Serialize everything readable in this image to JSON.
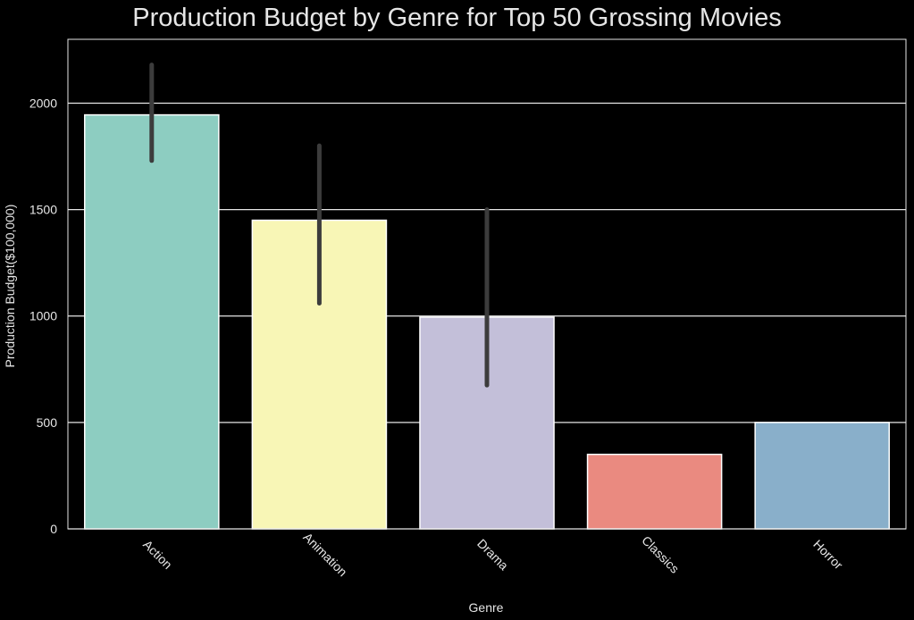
{
  "chart_data": {
    "type": "bar",
    "title": "Production Budget by Genre for Top 50 Grossing Movies",
    "xlabel": "Genre",
    "ylabel": "Production Budget($100,000)",
    "categories": [
      "Action",
      "Animation",
      "Drama",
      "Classics",
      "Horror"
    ],
    "values": [
      1945,
      1450,
      995,
      350,
      500
    ],
    "error_bars": [
      {
        "low": 1730,
        "high": 2180
      },
      {
        "low": 1060,
        "high": 1800
      },
      {
        "low": 675,
        "high": 1500
      },
      null,
      null
    ],
    "ylim": [
      0,
      2300
    ],
    "yticks": [
      0,
      500,
      1000,
      1500,
      2000
    ],
    "grid": true,
    "legend": false,
    "colors": [
      "#8dcdc1",
      "#f8f6b6",
      "#c3bfd9",
      "#ea8a80",
      "#89afca"
    ],
    "error_bar_color": "#3c3c3c",
    "background": "#000000",
    "gridline_color": "#e6e6e6",
    "text_color": "#e6e6e6"
  }
}
